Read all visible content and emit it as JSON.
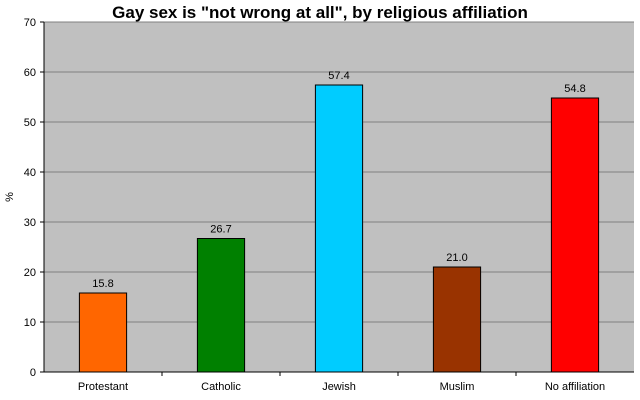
{
  "chart_data": {
    "type": "bar",
    "title": "Gay sex is \"not wrong at all\", by religious affiliation",
    "xlabel": "",
    "ylabel": "%",
    "categories": [
      "Protestant",
      "Catholic",
      "Jewish",
      "Muslim",
      "No affiliation"
    ],
    "values": [
      15.8,
      26.7,
      57.4,
      21.0,
      54.8
    ],
    "value_labels": [
      "15.8",
      "26.7",
      "57.4",
      "21.0",
      "54.8"
    ],
    "bar_colors": [
      "#ff6600",
      "#008000",
      "#00ccff",
      "#993300",
      "#ff0000"
    ],
    "ylim": [
      0,
      70
    ],
    "yticks": [
      0,
      10,
      20,
      30,
      40,
      50,
      60,
      70
    ],
    "grid": true,
    "legend": "none",
    "plot_background": "#c0c0c0"
  }
}
